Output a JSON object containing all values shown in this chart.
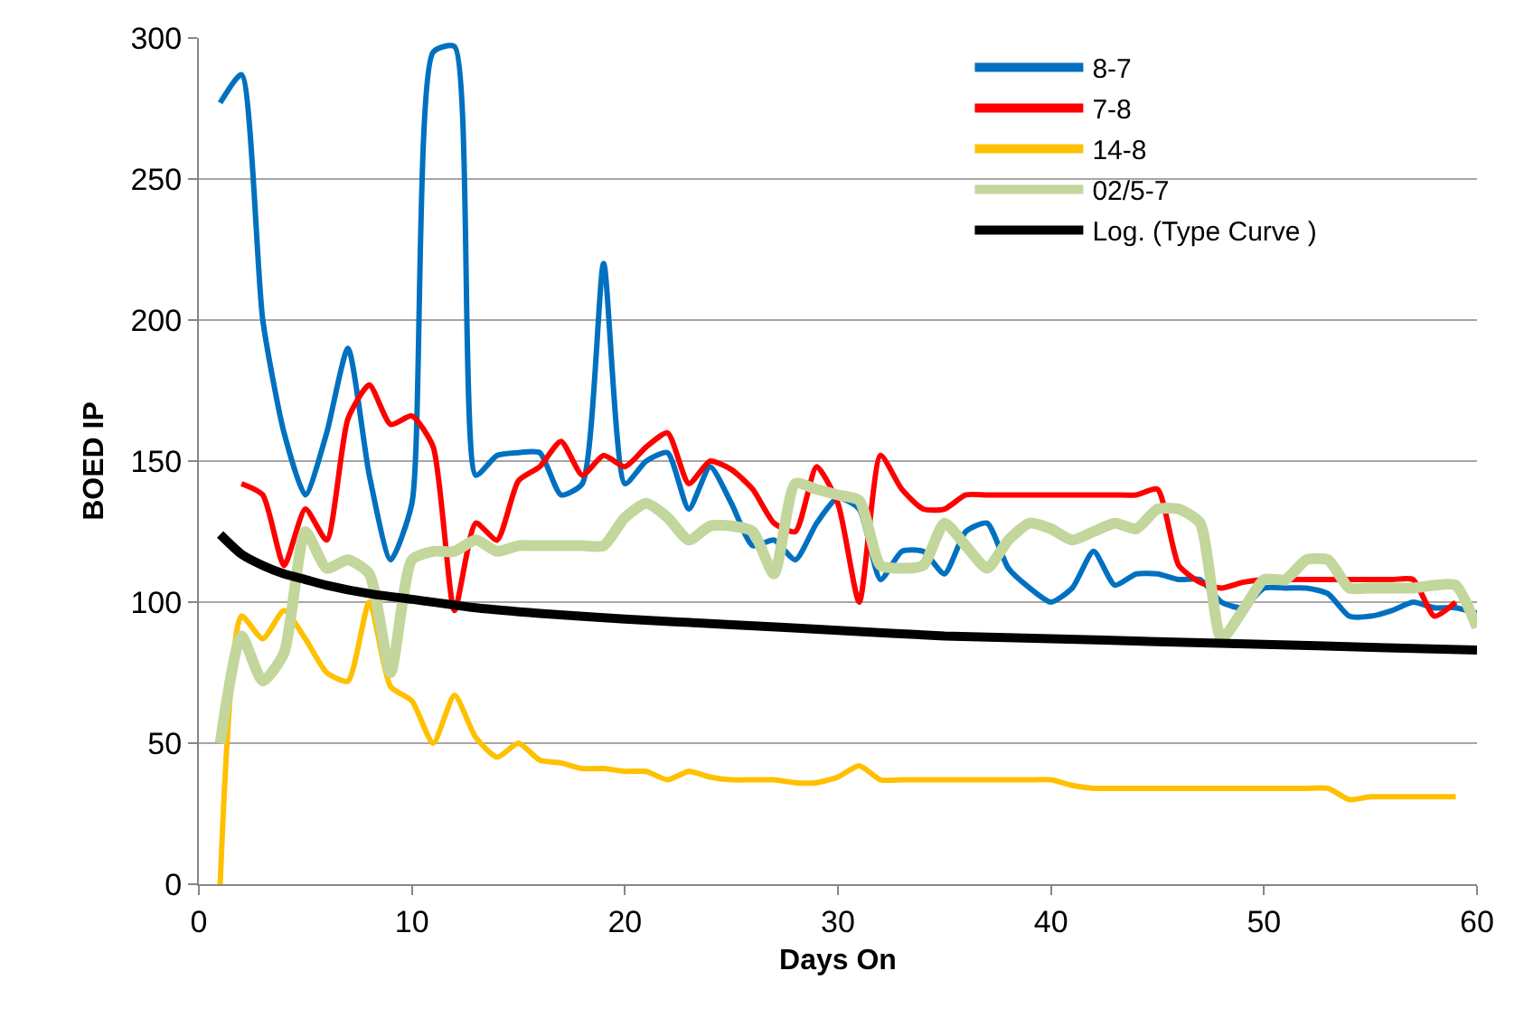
{
  "chart_data": {
    "type": "line",
    "xlabel": "Days On",
    "ylabel": "BOED IP",
    "xlim": [
      0,
      60
    ],
    "xticks": [
      0,
      10,
      20,
      30,
      40,
      50,
      60
    ],
    "ylim": [
      0,
      300
    ],
    "yticks": [
      0,
      50,
      100,
      150,
      200,
      250,
      300
    ],
    "grid": "y",
    "legend": "top right",
    "line_style": "solid",
    "marker": "none",
    "series": [
      {
        "name": "8-7",
        "color": "#0070c0",
        "x": [
          1,
          2,
          3,
          4,
          5,
          6,
          7,
          8,
          9,
          10,
          11,
          12,
          13,
          14,
          15,
          16,
          17,
          18,
          19,
          20,
          21,
          22,
          23,
          24,
          25,
          26,
          27,
          28,
          29,
          30,
          31,
          32,
          33,
          34,
          35,
          36,
          37,
          38,
          39,
          40,
          41,
          42,
          43,
          44,
          45,
          46,
          47,
          48,
          49,
          50,
          51,
          52,
          53,
          54,
          55,
          56,
          57,
          58,
          59,
          60
        ],
        "values": [
          277,
          287,
          200,
          160,
          138,
          160,
          190,
          145,
          115,
          135,
          295,
          297,
          145,
          152,
          153,
          153,
          138,
          142,
          220,
          142,
          150,
          153,
          133,
          148,
          135,
          120,
          122,
          115,
          128,
          137,
          133,
          108,
          118,
          118,
          110,
          125,
          128,
          112,
          105,
          100,
          105,
          118,
          106,
          110,
          110,
          108,
          108,
          100,
          98,
          105,
          105,
          105,
          103,
          95,
          95,
          97,
          100,
          98,
          98,
          96
        ]
      },
      {
        "name": "7-8",
        "color": "#ff0000",
        "x": [
          2,
          3,
          4,
          5,
          6,
          7,
          8,
          9,
          10,
          11,
          12,
          13,
          14,
          15,
          16,
          17,
          18,
          19,
          20,
          21,
          22,
          23,
          24,
          25,
          26,
          27,
          28,
          29,
          30,
          31,
          32,
          33,
          34,
          35,
          36,
          37,
          38,
          39,
          40,
          41,
          42,
          43,
          44,
          45,
          46,
          47,
          48,
          49,
          50,
          51,
          52,
          53,
          54,
          55,
          56,
          57,
          58,
          59
        ],
        "values": [
          142,
          138,
          113,
          133,
          122,
          165,
          177,
          163,
          166,
          155,
          97,
          128,
          122,
          143,
          148,
          157,
          145,
          152,
          148,
          155,
          160,
          142,
          150,
          147,
          140,
          128,
          125,
          148,
          135,
          100,
          152,
          140,
          133,
          133,
          138,
          138,
          138,
          138,
          138,
          138,
          138,
          138,
          138,
          140,
          113,
          107,
          105,
          107,
          108,
          108,
          108,
          108,
          108,
          108,
          108,
          108,
          95,
          100
        ]
      },
      {
        "name": "14-8",
        "color": "#ffc000",
        "x": [
          1,
          2,
          3,
          4,
          5,
          6,
          7,
          8,
          9,
          10,
          11,
          12,
          13,
          14,
          15,
          16,
          17,
          18,
          19,
          20,
          21,
          22,
          23,
          24,
          25,
          26,
          27,
          28,
          29,
          30,
          31,
          32,
          33,
          34,
          35,
          36,
          37,
          38,
          39,
          40,
          41,
          42,
          43,
          44,
          45,
          46,
          47,
          48,
          49,
          50,
          51,
          52,
          53,
          54,
          55,
          56,
          57,
          58,
          59
        ],
        "values": [
          0,
          95,
          87,
          97,
          87,
          75,
          72,
          100,
          70,
          65,
          50,
          67,
          52,
          45,
          50,
          44,
          43,
          41,
          41,
          40,
          40,
          37,
          40,
          38,
          37,
          37,
          37,
          36,
          36,
          38,
          42,
          37,
          37,
          37,
          37,
          37,
          37,
          37,
          37,
          37,
          35,
          34,
          34,
          34,
          34,
          34,
          34,
          34,
          34,
          34,
          34,
          34,
          34,
          30,
          31,
          31,
          31,
          31,
          31
        ]
      },
      {
        "name": "02/5-7",
        "color": "#c3d69b",
        "x": [
          1,
          2,
          3,
          4,
          5,
          6,
          7,
          8,
          9,
          10,
          11,
          12,
          13,
          14,
          15,
          16,
          17,
          18,
          19,
          20,
          21,
          22,
          23,
          24,
          25,
          26,
          27,
          28,
          29,
          30,
          31,
          32,
          33,
          34,
          35,
          36,
          37,
          38,
          39,
          40,
          41,
          42,
          43,
          44,
          45,
          46,
          47,
          48,
          49,
          50,
          51,
          52,
          53,
          54,
          55,
          56,
          57,
          58,
          59,
          60
        ],
        "values": [
          50,
          88,
          72,
          82,
          125,
          112,
          115,
          110,
          75,
          115,
          118,
          118,
          122,
          118,
          120,
          120,
          120,
          120,
          120,
          130,
          135,
          130,
          122,
          127,
          127,
          125,
          110,
          142,
          140,
          138,
          136,
          113,
          112,
          113,
          128,
          120,
          112,
          122,
          128,
          126,
          122,
          125,
          128,
          126,
          133,
          133,
          128,
          87,
          97,
          108,
          108,
          115,
          115,
          105,
          105,
          105,
          105,
          106,
          106,
          91
        ]
      },
      {
        "name": "Log. (Type Curve )",
        "color": "#000000",
        "x": [
          1,
          2,
          3,
          4,
          5,
          6,
          8,
          10,
          13,
          16,
          20,
          25,
          30,
          35,
          40,
          45,
          50,
          55,
          60
        ],
        "values": [
          124,
          117,
          113,
          110,
          108,
          106,
          103,
          101,
          98,
          96,
          94,
          92,
          90,
          88,
          87,
          86,
          85,
          84,
          83
        ]
      }
    ]
  }
}
